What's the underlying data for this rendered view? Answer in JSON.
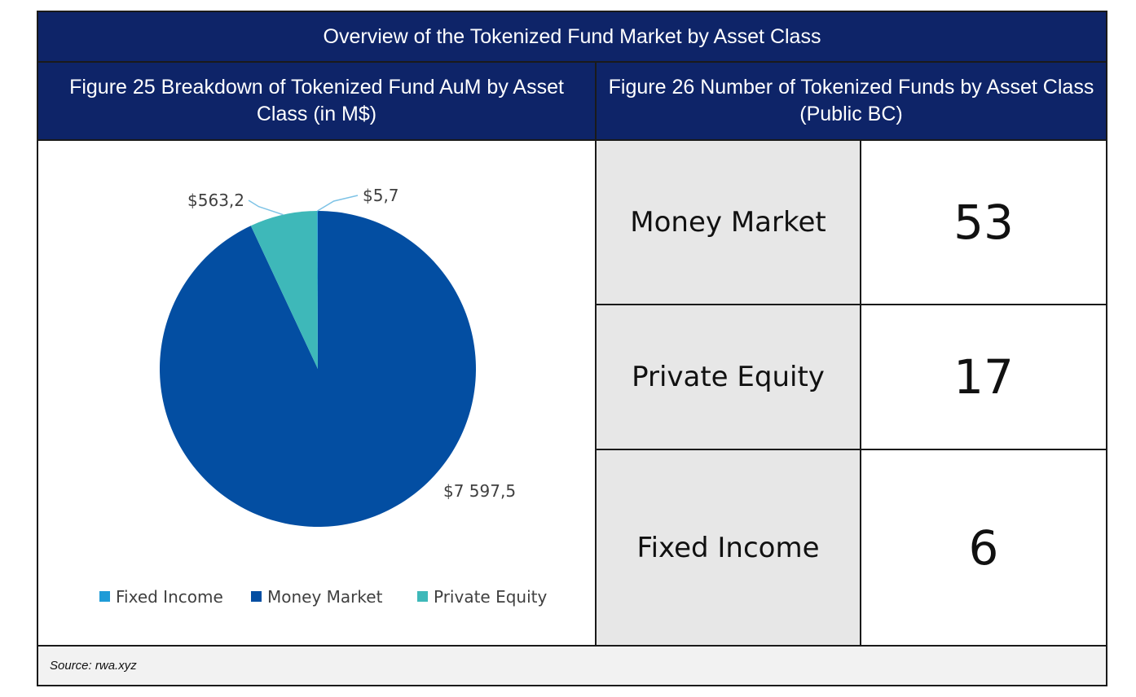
{
  "header": {
    "title": "Overview of the Tokenized Fund Market by Asset Class",
    "figure25_title": "Figure 25 Breakdown of Tokenized Fund AuM by Asset Class (in M$)",
    "figure26_title": "Figure 26 Number of Tokenized Funds by Asset Class (Public BC)"
  },
  "chart_data": {
    "type": "pie",
    "title": "",
    "unit": "M$",
    "slices": [
      {
        "label": "Fixed Income",
        "value": 5.7,
        "display": "$5,7",
        "color": "#1f9bd7"
      },
      {
        "label": "Money Market",
        "value": 7597.5,
        "display": "$7 597,5",
        "color": "#034ea2"
      },
      {
        "label": "Private Equity",
        "value": 563.2,
        "display": "$563,2",
        "color": "#3eb8b9"
      }
    ],
    "legend_position": "bottom"
  },
  "funds_table": [
    {
      "asset_class": "Money Market",
      "count": "53"
    },
    {
      "asset_class": "Private Equity",
      "count": "17"
    },
    {
      "asset_class": "Fixed Income",
      "count": "6"
    }
  ],
  "footer": {
    "source": "Source: rwa.xyz"
  }
}
